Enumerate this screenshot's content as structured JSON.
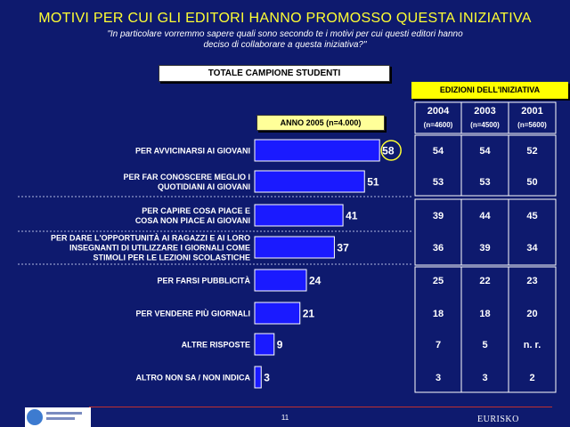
{
  "title": "MOTIVI PER CUI GLI EDITORI HANNO PROMOSSO QUESTA INIZIATIVA",
  "subtitle": "\"In particolare vorremmo sapere quali sono secondo te i motivi per cui questi editori hanno deciso di collaborare a questa iniziativa?\"",
  "sample_label": "TOTALE CAMPIONE STUDENTI",
  "year_label": "ANNO 2005 (n=4.000)",
  "editions_label": "EDIZIONI DELL'INIZIATIVA",
  "page_number": "11",
  "brand": "EURISKO",
  "colors": {
    "background": "#0e1a6e",
    "bar": "#1a1aff",
    "title": "#ffff33",
    "highlight_circle": "#ffff33",
    "table_border": "#ffffff"
  },
  "chart_data": {
    "type": "bar",
    "orientation": "horizontal",
    "categories": [
      "PER AVVICINARSI AI GIOVANI",
      "PER FAR CONOSCERE MEGLIO I QUOTIDIANI AI GIOVANI",
      "PER CAPIRE COSA PIACE E COSA NON PIACE AI GIOVANI",
      "PER DARE L'OPPORTUNITÀ AI RAGAZZI E AI LORO INSEGNANTI DI UTILIZZARE I GIORNALI COME STIMOLI PER LE LEZIONI SCOLASTICHE",
      "PER FARSI PUBBLICITÀ",
      "PER VENDERE PIÙ GIORNALI",
      "ALTRE RISPOSTE",
      "ALTRO NON SA / NON INDICA"
    ],
    "category_lines": [
      [
        "PER AVVICINARSI AI GIOVANI"
      ],
      [
        "PER FAR CONOSCERE MEGLIO I",
        "QUOTIDIANI AI GIOVANI"
      ],
      [
        "PER CAPIRE COSA PIACE E",
        "COSA NON PIACE AI GIOVANI"
      ],
      [
        "PER DARE L'OPPORTUNITÀ AI RAGAZZI E AI LORO",
        "INSEGNANTI DI UTILIZZARE I GIORNALI COME",
        "STIMOLI PER LE LEZIONI SCOLASTICHE"
      ],
      [
        "PER FARSI PUBBLICITÀ"
      ],
      [
        "PER VENDERE PIÙ GIORNALI"
      ],
      [
        "ALTRE RISPOSTE"
      ],
      [
        "ALTRO NON SA / NON INDICA"
      ]
    ],
    "series": [
      {
        "name": "ANNO 2005 (n=4.000)",
        "values": [
          58,
          51,
          41,
          37,
          24,
          21,
          9,
          3
        ]
      }
    ],
    "highlighted_index": 0,
    "xlim": [
      0,
      60
    ],
    "grid": false,
    "legend": "none",
    "comparison_table": {
      "title": "EDIZIONI DELL'INIZIATIVA",
      "columns": [
        {
          "year": "2004",
          "n": "(n=4600)",
          "values": [
            "54",
            "53",
            "39",
            "36",
            "25",
            "18",
            "7",
            "3"
          ]
        },
        {
          "year": "2003",
          "n": "(n=4500)",
          "values": [
            "54",
            "53",
            "44",
            "39",
            "22",
            "18",
            "5",
            "3"
          ]
        },
        {
          "year": "2001",
          "n": "(n=5600)",
          "values": [
            "52",
            "50",
            "45",
            "34",
            "23",
            "20",
            "n. r.",
            "2"
          ]
        }
      ]
    }
  }
}
